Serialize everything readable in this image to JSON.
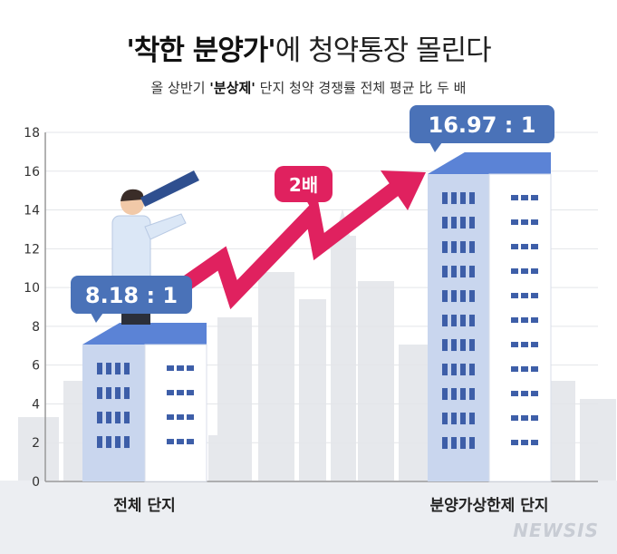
{
  "header": {
    "title_strong": "'착한 분양가'",
    "title_rest": "에 청약통장 몰린다",
    "subtitle_pre": "올 상반기 ",
    "subtitle_strong": "'분상제'",
    "subtitle_post": " 단지 청약 경쟁률 전체 평균 比 두 배"
  },
  "chart_data": {
    "type": "bar",
    "categories": [
      "전체 단지",
      "분양가상한제 단지"
    ],
    "values": [
      8.18,
      16.97
    ],
    "value_labels": [
      "8.18 : 1",
      "16.97 : 1"
    ],
    "annotation": "2배",
    "ylim": [
      0,
      18
    ],
    "yticks": [
      0,
      2,
      4,
      6,
      8,
      10,
      12,
      14,
      16,
      18
    ],
    "colors": {
      "label_bg": "#4a72b8",
      "arrow": "#e0215f",
      "building_side": "#c9d6ee",
      "window": "#3d5ea8",
      "roof": "#5b83d6"
    }
  },
  "brand": {
    "logo_text": "NEWSIS"
  }
}
